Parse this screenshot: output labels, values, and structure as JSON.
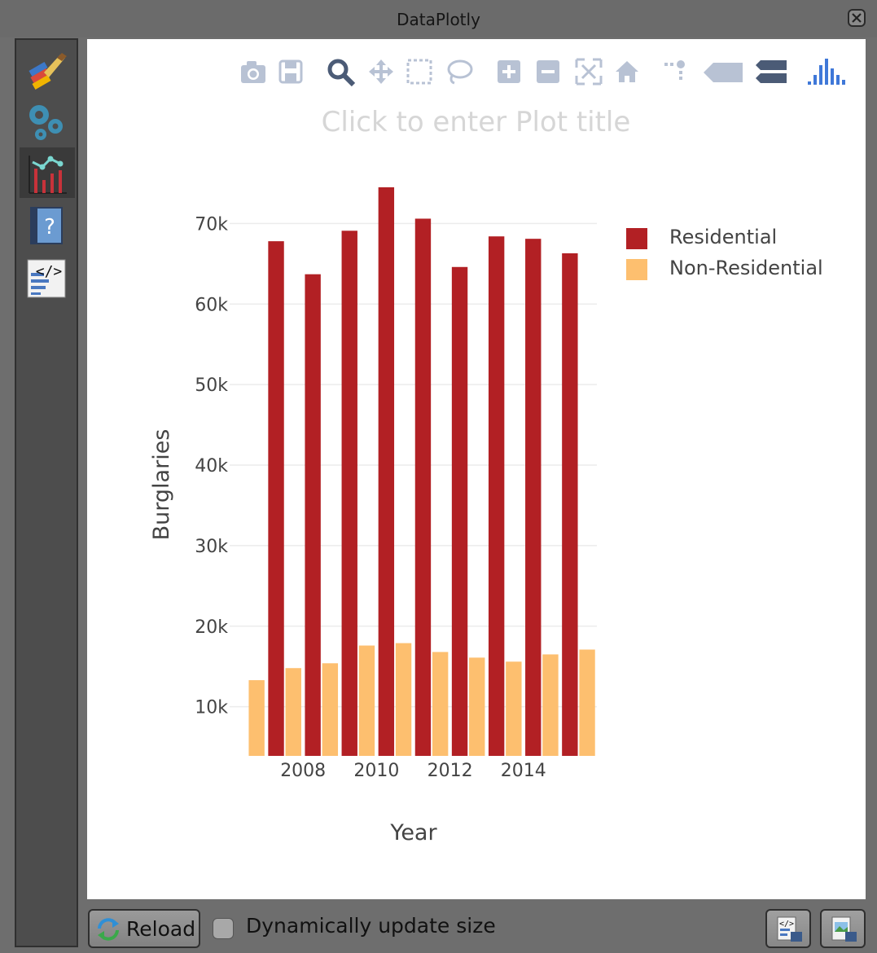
{
  "window": {
    "title": "DataPlotly"
  },
  "sidebar": {
    "items": [
      {
        "icon": "paint-brush-icon"
      },
      {
        "icon": "gears-icon"
      },
      {
        "icon": "plot-icon"
      },
      {
        "icon": "help-book-icon"
      },
      {
        "icon": "code-icon"
      }
    ]
  },
  "toolbar": {
    "icons": [
      "camera-icon",
      "save-icon",
      "zoom-icon",
      "pan-icon",
      "box-select-icon",
      "lasso-select-icon",
      "zoom-in-icon",
      "zoom-out-icon",
      "autoscale-icon",
      "reset-axes-icon",
      "spike-lines-icon",
      "hover-closest-icon",
      "hover-compare-icon",
      "plotly-logo-icon"
    ]
  },
  "plot": {
    "title_placeholder": "Click to enter Plot title"
  },
  "chart_data": {
    "type": "bar",
    "xlabel": "Year",
    "ylabel": "Burglaries",
    "x": [
      2006,
      2007,
      2008,
      2009,
      2010,
      2011,
      2012,
      2013,
      2014,
      2015
    ],
    "x_ticks": [
      "2008",
      "2010",
      "2012",
      "2014"
    ],
    "y_ticks": [
      "10k",
      "20k",
      "30k",
      "40k",
      "50k",
      "60k",
      "70k"
    ],
    "ylim": [
      3900,
      75500
    ],
    "grid": true,
    "legend_position": "top-right",
    "series": [
      {
        "name": "Residential",
        "color": "#b22024",
        "values": [
          null,
          67800,
          63700,
          69100,
          74500,
          70600,
          64600,
          68400,
          68100,
          66300
        ]
      },
      {
        "name": "Non-Residential",
        "color": "#fdbf6f",
        "values": [
          13300,
          14800,
          15400,
          17600,
          17900,
          16800,
          16100,
          15600,
          16500,
          17100
        ]
      }
    ]
  },
  "bottom": {
    "reload_label": "Reload",
    "dynamic_size_label": "Dynamically update size",
    "dynamic_size_checked": false
  }
}
